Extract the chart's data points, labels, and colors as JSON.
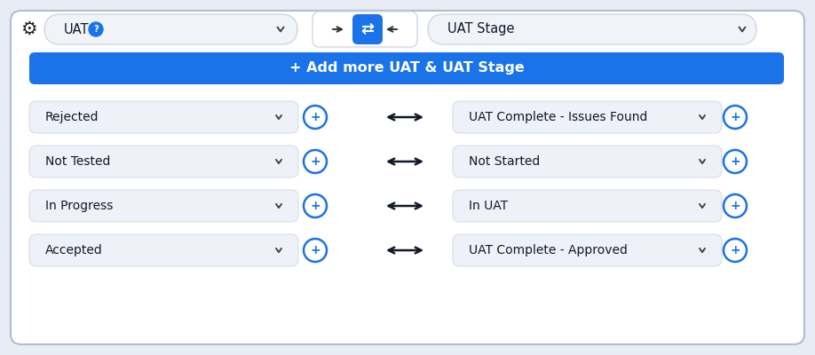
{
  "card_bg": "#ffffff",
  "card_inner_bg": "#ffffff",
  "border_color": "#b0bdd0",
  "page_bg": "#e8edf5",
  "header": {
    "left_label": "UAT",
    "right_label": "UAT Stage",
    "dropdown_bg": "#f0f3f8",
    "dropdown_border": "#d0d7e4",
    "sync_box_bg": "#ffffff",
    "sync_box_border": "#d0d7e4",
    "sync_btn_bg": "#1a73e8",
    "arrow_color": "#222222"
  },
  "add_btn_bg": "#1a73e8",
  "add_btn_text": "+ Add more UAT & UAT Stage",
  "add_btn_text_color": "#ffffff",
  "rows": [
    {
      "left": "Rejected",
      "right": "UAT Complete - Issues Found"
    },
    {
      "left": "Not Tested",
      "right": "Not Started"
    },
    {
      "left": "In Progress",
      "right": "In UAT"
    },
    {
      "left": "Accepted",
      "right": "UAT Complete - Approved"
    }
  ],
  "row_bg": "#eef1f7",
  "row_border": "#d8dde8",
  "row_text_color": "#111827",
  "circle_color": "#1a73e8",
  "chevron_color": "#444444",
  "gear_color": "#222222",
  "q_circle_bg": "#1a73e8",
  "double_arrow_color": "#111827"
}
